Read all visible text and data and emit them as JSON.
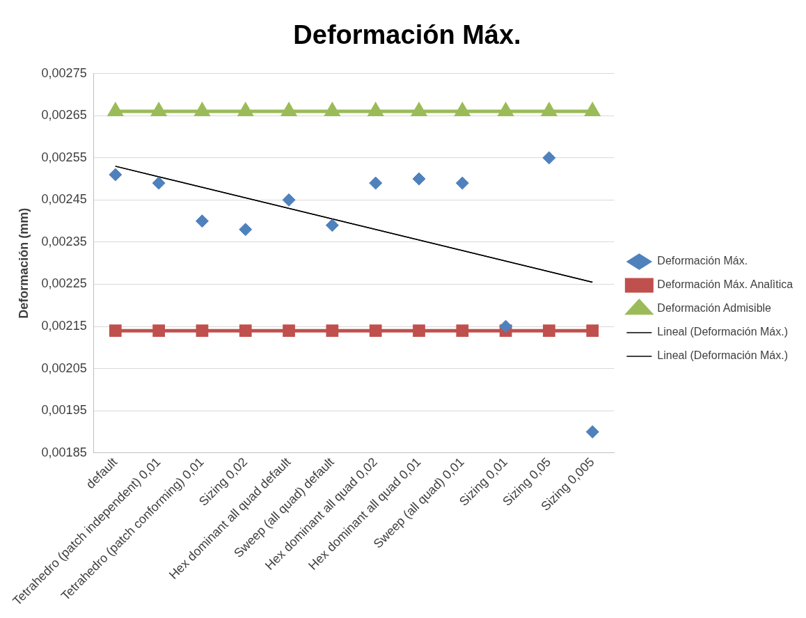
{
  "chart_data": {
    "type": "line",
    "title": "Deformación Máx.",
    "ylabel": "Deformación (mm)",
    "categories": [
      "default",
      "Tetrahedro (patch independent) 0,01",
      "Tetrahedro (patch conforming) 0,01",
      "Sizing 0,02",
      "Hex dominant all quad default",
      "Sweep (all quad) default",
      "Hex dominant all quad 0,02",
      "Hex dominant all quad 0,01",
      "Sweep (all quad) 0,01",
      "Sizing 0,01",
      "Sizing 0,05",
      "Sizing 0,005"
    ],
    "series": [
      {
        "name": "Deformación Máx.",
        "type": "scatter",
        "marker": "diamond",
        "color": "#4f81bd",
        "values": [
          0.00251,
          0.00249,
          0.0024,
          0.00238,
          0.00245,
          0.00239,
          0.00249,
          0.0025,
          0.00249,
          0.00215,
          0.00255,
          0.0019
        ]
      },
      {
        "name": "Deformación Máx. Analìtica",
        "marker": "square",
        "color": "#c0504d",
        "values": [
          0.00214,
          0.00214,
          0.00214,
          0.00214,
          0.00214,
          0.00214,
          0.00214,
          0.00214,
          0.00214,
          0.00214,
          0.00214,
          0.00214
        ]
      },
      {
        "name": "Deformación Admisible",
        "marker": "triangle",
        "color": "#9bbb59",
        "values": [
          0.00266,
          0.00266,
          0.00266,
          0.00266,
          0.00266,
          0.00266,
          0.00266,
          0.00266,
          0.00266,
          0.00266,
          0.00266,
          0.00266
        ]
      },
      {
        "name": "Lineal (Deformación Máx.)",
        "marker": "none",
        "color": "#000000",
        "values": [
          0.00253,
          null,
          null,
          null,
          null,
          null,
          null,
          null,
          null,
          null,
          null,
          0.002255
        ]
      },
      {
        "name": "Lineal (Deformación Máx.)",
        "marker": "none",
        "color": "#000000",
        "values": [
          0.00253,
          null,
          null,
          null,
          null,
          null,
          null,
          null,
          null,
          null,
          null,
          0.002255
        ]
      }
    ],
    "ylim": [
      0.00185,
      0.00275
    ],
    "yticks": [
      {
        "value": 0.00185,
        "label": "0,00185"
      },
      {
        "value": 0.00195,
        "label": "0,00195"
      },
      {
        "value": 0.00205,
        "label": "0,00205"
      },
      {
        "value": 0.00215,
        "label": "0,00215"
      },
      {
        "value": 0.00225,
        "label": "0,00225"
      },
      {
        "value": 0.00235,
        "label": "0,00235"
      },
      {
        "value": 0.00245,
        "label": "0,00245"
      },
      {
        "value": 0.00255,
        "label": "0,00255"
      },
      {
        "value": 0.00265,
        "label": "0,00265"
      },
      {
        "value": 0.00275,
        "label": "0,00275"
      }
    ],
    "grid": "y",
    "legend": "right"
  }
}
